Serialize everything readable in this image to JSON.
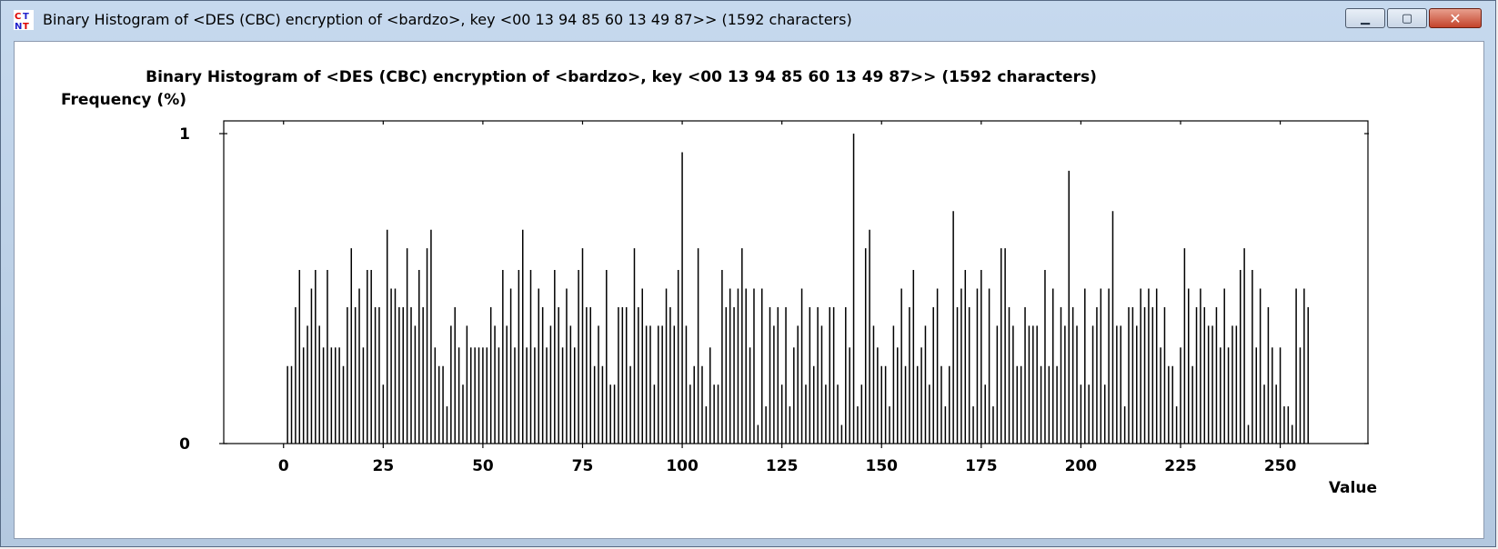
{
  "window": {
    "title": "Binary Histogram of <DES (CBC) encryption of <bardzo>, key <00 13 94 85 60 13 49 87>> (1592 characters)",
    "icon": "cryptool-app-icon",
    "buttons": {
      "minimize_icon": "minimize-icon",
      "maximize_icon": "maximize-icon",
      "close_icon": "close-icon"
    }
  },
  "chart_data": {
    "type": "bar",
    "title": "Binary Histogram of <DES (CBC) encryption of <bardzo>, key <00 13 94 85 60 13 49 87>> (1592 characters)",
    "ylabel": "Frequency (%)",
    "xlabel": "Value",
    "xlim": [
      -15,
      272
    ],
    "ylim": [
      0,
      1
    ],
    "xticks": [
      0,
      25,
      50,
      75,
      100,
      125,
      150,
      175,
      200,
      225,
      250
    ],
    "yticks": [
      0,
      1
    ],
    "grid": false,
    "x_start": 0,
    "values": [
      0.0,
      0.25,
      0.25,
      0.44,
      0.56,
      0.31,
      0.38,
      0.5,
      0.56,
      0.38,
      0.31,
      0.56,
      0.31,
      0.31,
      0.31,
      0.25,
      0.44,
      0.63,
      0.44,
      0.5,
      0.31,
      0.56,
      0.56,
      0.44,
      0.44,
      0.19,
      0.69,
      0.5,
      0.5,
      0.44,
      0.44,
      0.63,
      0.44,
      0.38,
      0.56,
      0.44,
      0.63,
      0.69,
      0.31,
      0.25,
      0.25,
      0.12,
      0.38,
      0.44,
      0.31,
      0.19,
      0.38,
      0.31,
      0.31,
      0.31,
      0.31,
      0.31,
      0.44,
      0.38,
      0.31,
      0.56,
      0.38,
      0.5,
      0.31,
      0.56,
      0.69,
      0.31,
      0.56,
      0.31,
      0.5,
      0.44,
      0.31,
      0.38,
      0.56,
      0.44,
      0.31,
      0.5,
      0.38,
      0.31,
      0.56,
      0.63,
      0.44,
      0.44,
      0.25,
      0.38,
      0.25,
      0.56,
      0.19,
      0.19,
      0.44,
      0.44,
      0.44,
      0.25,
      0.63,
      0.44,
      0.5,
      0.38,
      0.38,
      0.19,
      0.38,
      0.38,
      0.5,
      0.44,
      0.38,
      0.56,
      0.94,
      0.38,
      0.19,
      0.25,
      0.63,
      0.25,
      0.12,
      0.31,
      0.19,
      0.19,
      0.56,
      0.44,
      0.5,
      0.44,
      0.5,
      0.63,
      0.5,
      0.31,
      0.5,
      0.06,
      0.5,
      0.12,
      0.44,
      0.38,
      0.44,
      0.19,
      0.44,
      0.12,
      0.31,
      0.38,
      0.5,
      0.19,
      0.44,
      0.25,
      0.44,
      0.38,
      0.19,
      0.44,
      0.44,
      0.19,
      0.06,
      0.44,
      0.31,
      1.0,
      0.12,
      0.19,
      0.63,
      0.69,
      0.38,
      0.31,
      0.25,
      0.25,
      0.12,
      0.38,
      0.31,
      0.5,
      0.25,
      0.44,
      0.56,
      0.25,
      0.31,
      0.38,
      0.19,
      0.44,
      0.5,
      0.25,
      0.12,
      0.25,
      0.75,
      0.44,
      0.5,
      0.56,
      0.44,
      0.12,
      0.5,
      0.56,
      0.19,
      0.5,
      0.12,
      0.38,
      0.63,
      0.63,
      0.44,
      0.38,
      0.25,
      0.25,
      0.44,
      0.38,
      0.38,
      0.38,
      0.25,
      0.56,
      0.25,
      0.5,
      0.25,
      0.44,
      0.38,
      0.88,
      0.44,
      0.38,
      0.19,
      0.5,
      0.19,
      0.38,
      0.44,
      0.5,
      0.19,
      0.5,
      0.75,
      0.38,
      0.38,
      0.12,
      0.44,
      0.44,
      0.38,
      0.5,
      0.44,
      0.5,
      0.44,
      0.5,
      0.31,
      0.44,
      0.25,
      0.25,
      0.12,
      0.31,
      0.63,
      0.5,
      0.25,
      0.44,
      0.5,
      0.44,
      0.38,
      0.38,
      0.44,
      0.31,
      0.5,
      0.31,
      0.38,
      0.38,
      0.56,
      0.63,
      0.06,
      0.56,
      0.31,
      0.5,
      0.19,
      0.44,
      0.31,
      0.19,
      0.31,
      0.12,
      0.12,
      0.06,
      0.5,
      0.31,
      0.5,
      0.44
    ]
  }
}
